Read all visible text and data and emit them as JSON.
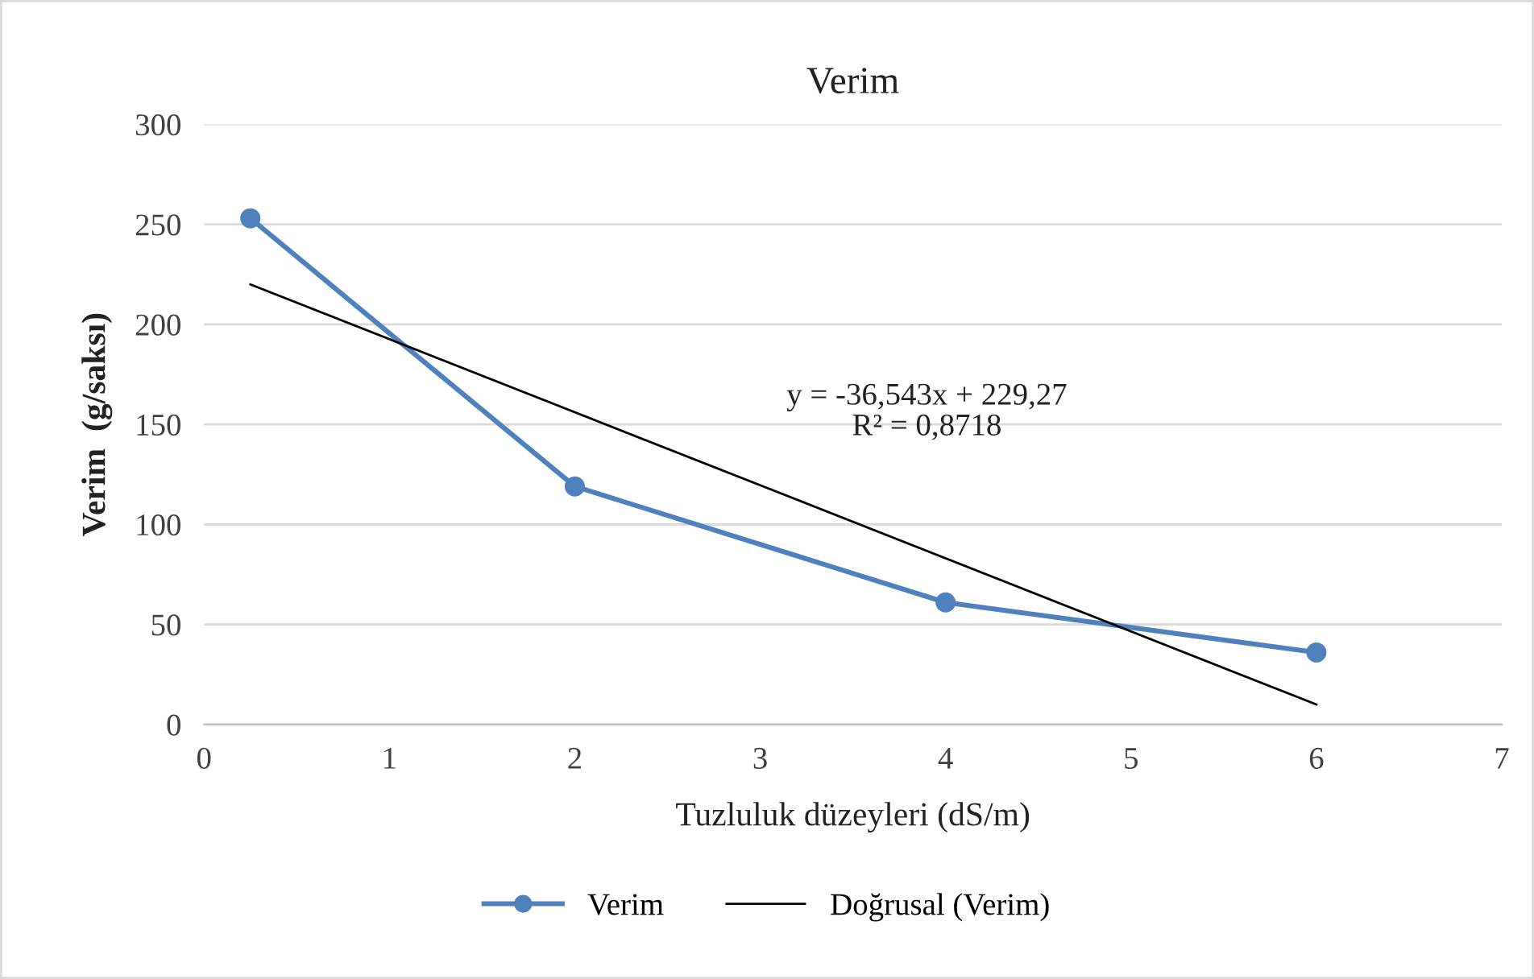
{
  "chart_data": {
    "type": "line",
    "title": "Verim",
    "xlabel": "Tuzluluk düzeyleri (dS/m)",
    "ylabel": "Verim  (g/saksı)",
    "xlim": [
      0,
      7
    ],
    "xticks": [
      0,
      1,
      2,
      3,
      4,
      5,
      6,
      7
    ],
    "ylim": [
      0,
      300
    ],
    "yticks": [
      0,
      50,
      100,
      150,
      200,
      250,
      300
    ],
    "grid": "y",
    "legend": "bottom",
    "marker": "circle",
    "line_style": "solid",
    "series": [
      {
        "name": "Verim",
        "color": "#4f81bd",
        "x": [
          0.25,
          2,
          4,
          6
        ],
        "values": [
          253,
          119,
          61,
          36
        ]
      },
      {
        "name": "Doğrusal (Verim)",
        "color": "#000000",
        "type": "line",
        "marker": "none",
        "x": [
          0.25,
          6
        ],
        "values": [
          220,
          10
        ]
      }
    ],
    "annotations": [
      "y = -36,543x + 229,27\nR² = 0,8718"
    ]
  }
}
